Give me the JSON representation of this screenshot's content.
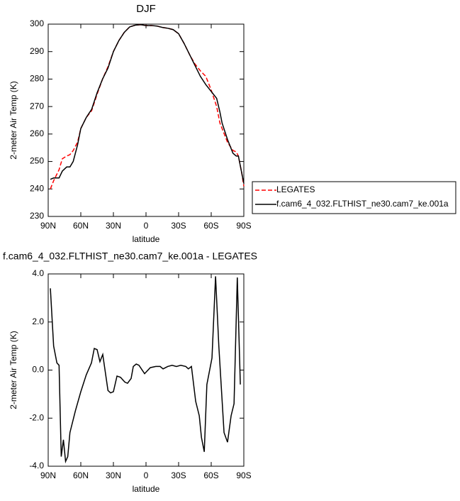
{
  "chart_data": [
    {
      "type": "line",
      "title": "DJF",
      "xlabel": "latitude",
      "ylabel": "2-meter Air Temp (K)",
      "x": [
        88,
        85,
        80,
        77,
        73,
        70,
        67,
        63,
        60,
        55,
        50,
        45,
        40,
        35,
        30,
        25,
        20,
        15,
        10,
        5,
        0,
        -5,
        -10,
        -15,
        -20,
        -25,
        -30,
        -35,
        -40,
        -45,
        -50,
        -55,
        -60,
        -65,
        -68,
        -70,
        -75,
        -80,
        -83,
        -85,
        -88,
        -90
      ],
      "series": [
        {
          "name": "LEGATES",
          "color": "#ff0000",
          "dash": true,
          "values": [
            240,
            243,
            247,
            251,
            252,
            252.5,
            254,
            257,
            262,
            266,
            268.5,
            274.5,
            280,
            284.5,
            290,
            294,
            297,
            299,
            299.6,
            299.8,
            299.5,
            299.5,
            299.3,
            298.8,
            298.5,
            298,
            296.5,
            293,
            289,
            285.5,
            283,
            281,
            276,
            270,
            264,
            262,
            257,
            254,
            253.5,
            252,
            246,
            241
          ]
        },
        {
          "name": "f.cam6_4_032.FLTHIST_ne30.cam7_ke.001a",
          "color": "#000000",
          "dash": false,
          "values": [
            243.5,
            244,
            244,
            246.5,
            248,
            248,
            250,
            256,
            262,
            266,
            269,
            275,
            280,
            284,
            290,
            294,
            297,
            299,
            299.6,
            299.8,
            299.5,
            299.5,
            299.3,
            298.8,
            298.5,
            298,
            296.5,
            293,
            289,
            285,
            281,
            278,
            275.5,
            273,
            268,
            264,
            258,
            253,
            252,
            252,
            246,
            242
          ]
        }
      ],
      "xlim": [
        90,
        -90
      ],
      "xticks": [
        {
          "value": 90,
          "label": "90N"
        },
        {
          "value": 60,
          "label": "60N"
        },
        {
          "value": 30,
          "label": "30N"
        },
        0,
        {
          "value": -30,
          "label": "30S"
        },
        {
          "value": -60,
          "label": "60S"
        },
        {
          "value": -90,
          "label": "90S"
        }
      ],
      "ylim": [
        230,
        300
      ],
      "yticks": [
        230,
        240,
        250,
        260,
        270,
        280,
        290,
        300
      ],
      "legend": "right"
    },
    {
      "type": "line",
      "title": "f.cam6_4_032.FLTHIST_ne30.cam7_ke.001a - LEGATES",
      "xlabel": "latitude",
      "ylabel": "2-meter Air Temp (K)",
      "x": [
        88,
        85,
        82,
        80,
        78,
        76,
        74,
        72,
        70,
        65,
        60,
        55,
        50.2,
        47.6,
        45,
        42.4,
        39.8,
        35,
        32.6,
        30,
        26.7,
        23.5,
        19.5,
        17,
        13.7,
        11.7,
        9,
        6.5,
        1.3,
        -3.9,
        -9,
        -13,
        -15.7,
        -20,
        -24,
        -28,
        -32,
        -36.6,
        -39,
        -41.8,
        -45.7,
        -49,
        -51,
        -53.6,
        -56,
        -60.7,
        -64,
        -67,
        -71.8,
        -75,
        -78.3,
        -81,
        -84,
        -86.8
      ],
      "series": [
        {
          "color": "#000000",
          "values": [
            3.4,
            1.0,
            0.3,
            0.2,
            -3.6,
            -2.9,
            -3.8,
            -3.6,
            -2.6,
            -1.7,
            -0.9,
            -0.2,
            0.3,
            0.9,
            0.85,
            0.35,
            0.65,
            -0.85,
            -0.95,
            -0.9,
            -0.25,
            -0.3,
            -0.5,
            -0.55,
            -0.35,
            0.15,
            0.25,
            0.2,
            -0.15,
            0.1,
            0.15,
            0.15,
            0.05,
            0.15,
            0.2,
            0.15,
            0.2,
            0.15,
            0.05,
            0.15,
            -1.3,
            -1.9,
            -2.8,
            -3.4,
            -0.6,
            0.5,
            3.9,
            1.0,
            -2.6,
            -3.0,
            -1.9,
            -1.4,
            3.85,
            -0.6
          ]
        }
      ],
      "xlim": [
        90,
        -90
      ],
      "xticks": [
        {
          "value": 90,
          "label": "90N"
        },
        {
          "value": 60,
          "label": "60N"
        },
        {
          "value": 30,
          "label": "30N"
        },
        0,
        {
          "value": -30,
          "label": "30S"
        },
        {
          "value": -60,
          "label": "60S"
        },
        {
          "value": -90,
          "label": "90S"
        }
      ],
      "ylim": [
        -4,
        4
      ],
      "yticks": [
        {
          "value": -4,
          "label": "-4.0"
        },
        {
          "value": -2,
          "label": "-2.0"
        },
        {
          "value": 0,
          "label": "0.0"
        },
        {
          "value": 2,
          "label": "2.0"
        },
        {
          "value": 4,
          "label": "4.0"
        }
      ]
    }
  ]
}
